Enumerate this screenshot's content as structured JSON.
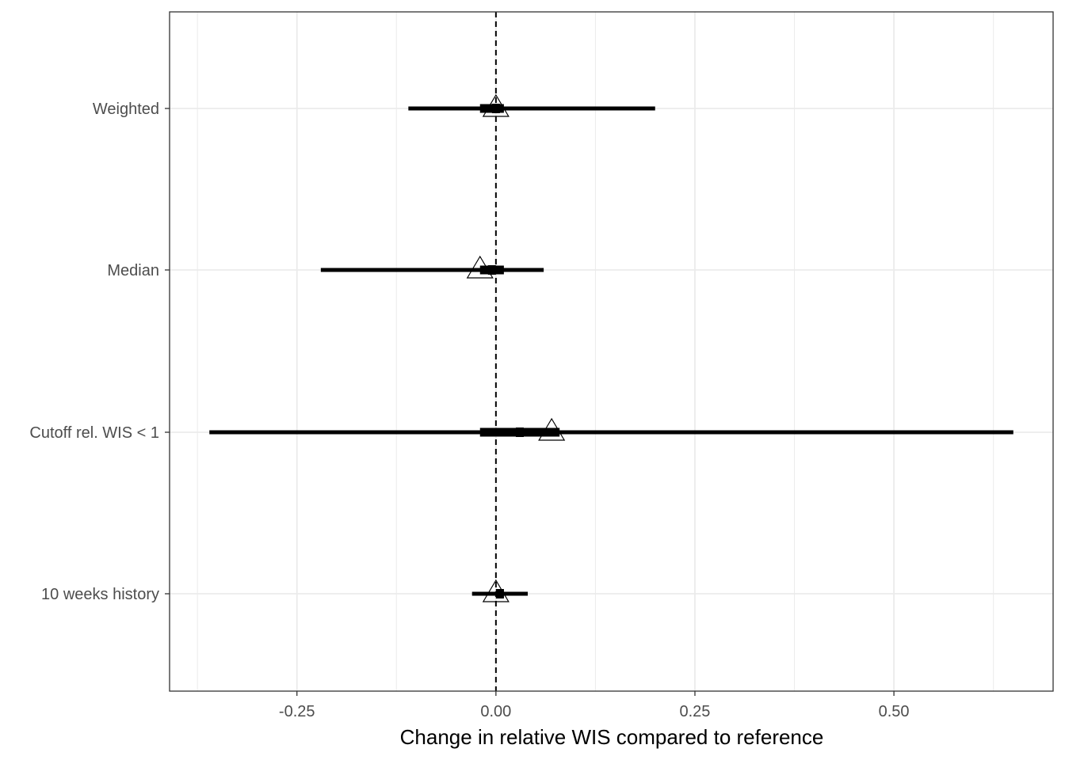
{
  "chart_data": {
    "type": "forest",
    "title": "",
    "xlabel": "Change in relative WIS compared to reference",
    "ylabel": "",
    "xlim": [
      -0.41,
      0.7
    ],
    "x_ticks": [
      -0.25,
      0.0,
      0.25,
      0.5
    ],
    "x_tick_labels": [
      "-0.25",
      "0.00",
      "0.25",
      "0.50"
    ],
    "x_minor_ticks": [
      -0.375,
      -0.125,
      0.125,
      0.375,
      0.625
    ],
    "reference_line": 0,
    "grid": true,
    "categories": [
      "Weighted",
      "Median",
      "Cutoff rel. WIS < 1",
      "10 weeks history"
    ],
    "rows": [
      {
        "label": "Weighted",
        "lower": -0.11,
        "upper": 0.2,
        "inner_lower": -0.02,
        "inner_upper": 0.01,
        "median": 0.0,
        "mean": 0.0
      },
      {
        "label": "Median",
        "lower": -0.22,
        "upper": 0.06,
        "inner_lower": -0.02,
        "inner_upper": 0.01,
        "median": -0.005,
        "mean": -0.02
      },
      {
        "label": "Cutoff rel. WIS < 1",
        "lower": -0.36,
        "upper": 0.65,
        "inner_lower": -0.02,
        "inner_upper": 0.08,
        "median": 0.03,
        "mean": 0.07
      },
      {
        "label": "10 weeks history",
        "lower": -0.03,
        "upper": 0.04,
        "inner_lower": 0.0,
        "inner_upper": 0.01,
        "median": 0.005,
        "mean": 0.0
      }
    ],
    "colors": {
      "interval": "#000000",
      "grid": "#ebebeb",
      "panel_border": "#333333"
    }
  }
}
